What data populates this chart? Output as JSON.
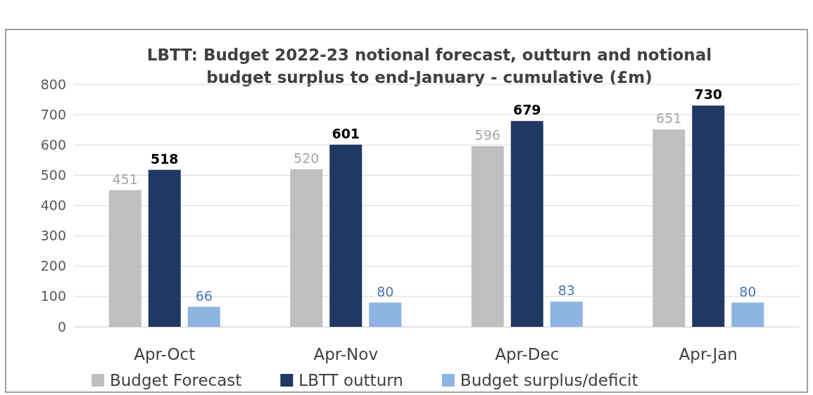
{
  "chart_data": {
    "type": "bar",
    "title": "LBTT: Budget 2022-23 notional forecast, outturn and notional budget surplus to end-January - cumulative (£m)",
    "categories": [
      "Apr-Oct",
      "Apr-Nov",
      "Apr-Dec",
      "Apr-Jan"
    ],
    "series": [
      {
        "name": "Budget Forecast",
        "color": "#bfbfbf",
        "values": [
          451,
          520,
          596,
          651
        ]
      },
      {
        "name": "LBTT outturn",
        "color": "#1f3864",
        "values": [
          518,
          601,
          679,
          730
        ]
      },
      {
        "name": "Budget surplus/deficit",
        "color": "#8eb4e3",
        "values": [
          66,
          80,
          83,
          80
        ]
      }
    ],
    "ylim": [
      0,
      800
    ],
    "yticks": [
      0,
      100,
      200,
      300,
      400,
      500,
      600,
      700,
      800
    ],
    "grid": "y",
    "data_labels": true,
    "legend": "bottom"
  }
}
